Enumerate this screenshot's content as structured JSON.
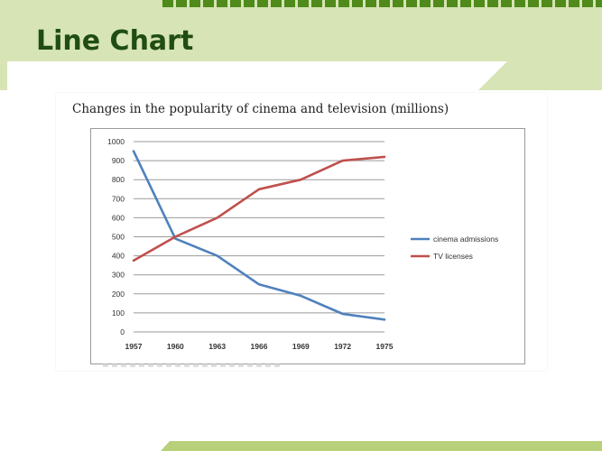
{
  "slide": {
    "title": "Line Chart",
    "colors": {
      "band": "#d7e4b5",
      "stripe": "#4f8a1b",
      "title": "#1f4d12"
    }
  },
  "chart_data": {
    "type": "line",
    "title": "Changes in the popularity of cinema and television (millions)",
    "xlabel": "",
    "ylabel": "",
    "x": [
      "1957",
      "1960",
      "1963",
      "1966",
      "1969",
      "1972",
      "1975"
    ],
    "ylim": [
      0,
      1000
    ],
    "yticks": [
      "0",
      "100",
      "200",
      "300",
      "400",
      "500",
      "600",
      "700",
      "800",
      "900",
      "1000"
    ],
    "grid": true,
    "legend_position": "right",
    "series": [
      {
        "name": "cinema admissions",
        "color": "#4f81bd",
        "values": [
          950,
          490,
          400,
          250,
          190,
          95,
          65
        ]
      },
      {
        "name": "TV licenses",
        "color": "#c0504d",
        "values": [
          375,
          500,
          600,
          750,
          800,
          900,
          920
        ]
      }
    ]
  }
}
